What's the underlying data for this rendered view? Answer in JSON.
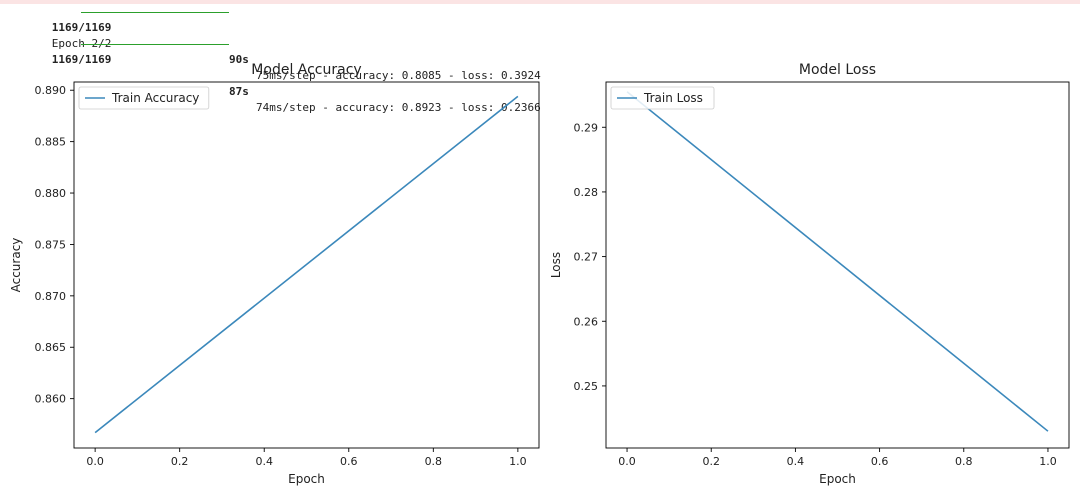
{
  "console": {
    "lines": [
      {
        "step": "1169/1169",
        "time": "90s",
        "rest": "75ms/step - accuracy: 0.8085 - loss: 0.3924"
      },
      {
        "text": "Epoch 2/2"
      },
      {
        "step": "1169/1169",
        "time": "87s",
        "rest": "74ms/step - accuracy: 0.8923 - loss: 0.2366"
      }
    ]
  },
  "colors": {
    "line": "#3b88bb",
    "progress": "#2ca02c",
    "stderr_background": "#fbe4e4"
  },
  "chart_data": [
    {
      "type": "line",
      "title": "Model Accuracy",
      "xlabel": "Epoch",
      "ylabel": "Accuracy",
      "legend_position": "top-left",
      "grid": false,
      "xlim": [
        -0.05,
        1.05
      ],
      "ylim": [
        0.8552,
        0.8908
      ],
      "x_ticks": [
        0.0,
        0.2,
        0.4,
        0.6,
        0.8,
        1.0
      ],
      "x_tick_labels": [
        "0.0",
        "0.2",
        "0.4",
        "0.6",
        "0.8",
        "1.0"
      ],
      "y_ticks": [
        0.86,
        0.865,
        0.87,
        0.875,
        0.88,
        0.885,
        0.89
      ],
      "y_tick_labels": [
        "0.860",
        "0.865",
        "0.870",
        "0.875",
        "0.880",
        "0.885",
        "0.890"
      ],
      "series": [
        {
          "name": "Train Accuracy",
          "x": [
            0,
            1
          ],
          "y": [
            0.8567,
            0.8894
          ]
        }
      ]
    },
    {
      "type": "line",
      "title": "Model Loss",
      "xlabel": "Epoch",
      "ylabel": "Loss",
      "legend_position": "top-left",
      "grid": false,
      "xlim": [
        -0.05,
        1.05
      ],
      "ylim": [
        0.2404,
        0.297
      ],
      "x_ticks": [
        0.0,
        0.2,
        0.4,
        0.6,
        0.8,
        1.0
      ],
      "x_tick_labels": [
        "0.0",
        "0.2",
        "0.4",
        "0.6",
        "0.8",
        "1.0"
      ],
      "y_ticks": [
        0.25,
        0.26,
        0.27,
        0.28,
        0.29
      ],
      "y_tick_labels": [
        "0.25",
        "0.26",
        "0.27",
        "0.28",
        "0.29"
      ],
      "series": [
        {
          "name": "Train Loss",
          "x": [
            0,
            1
          ],
          "y": [
            0.2955,
            0.243
          ]
        }
      ]
    }
  ]
}
